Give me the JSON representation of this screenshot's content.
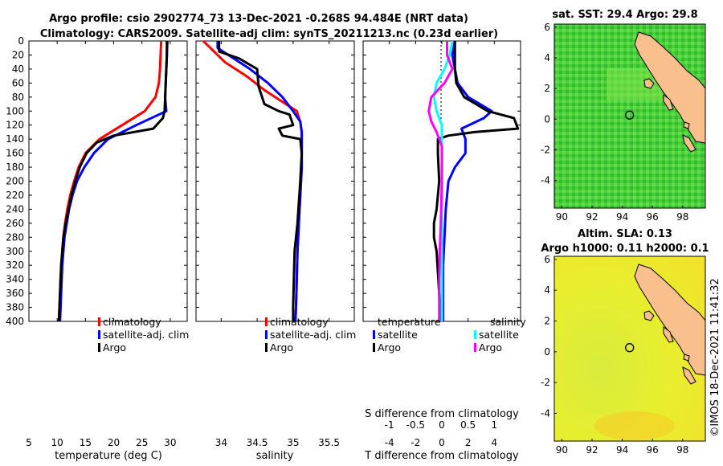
{
  "chart_data": {
    "type": "line",
    "title_line1": "Argo profile: csio 2902774_73 13-Dec-2021 -0.268S 94.484E (NRT data)",
    "title_line2": "Climatology: CARS2009. Satellite-adj clim: synTS_20211213.nc (0.23d earlier)",
    "depth_axis": {
      "ylim": [
        0,
        400
      ],
      "ticks": [
        0,
        20,
        40,
        60,
        80,
        100,
        120,
        140,
        160,
        180,
        200,
        220,
        240,
        260,
        280,
        300,
        320,
        340,
        360,
        380,
        400
      ],
      "reversed": true
    },
    "panels": [
      {
        "name": "temperature",
        "xlabel": "temperature (deg C)",
        "xlim": [
          5,
          33
        ],
        "xticks": [
          5,
          10,
          15,
          20,
          25,
          30
        ],
        "legend": [
          "climatology",
          "satellite-adj. clim",
          "Argo"
        ],
        "series": [
          {
            "name": "climatology",
            "color": "#ff0000",
            "points": [
              [
                28.4,
                0
              ],
              [
                28.3,
                20
              ],
              [
                28.2,
                40
              ],
              [
                28.0,
                60
              ],
              [
                27.4,
                80
              ],
              [
                25.5,
                100
              ],
              [
                21.5,
                120
              ],
              [
                17.5,
                140
              ],
              [
                15.0,
                160
              ],
              [
                13.8,
                180
              ],
              [
                13.0,
                200
              ],
              [
                12.3,
                220
              ],
              [
                11.8,
                240
              ],
              [
                11.4,
                260
              ],
              [
                11.1,
                280
              ],
              [
                10.9,
                300
              ],
              [
                10.8,
                320
              ],
              [
                10.6,
                340
              ],
              [
                10.5,
                360
              ],
              [
                10.4,
                380
              ],
              [
                10.3,
                400
              ]
            ]
          },
          {
            "name": "satellite-adj. clim",
            "color": "#0000ff",
            "points": [
              [
                29.5,
                0
              ],
              [
                29.4,
                20
              ],
              [
                29.3,
                40
              ],
              [
                29.2,
                60
              ],
              [
                29.1,
                80
              ],
              [
                29.3,
                100
              ],
              [
                24.0,
                120
              ],
              [
                19.0,
                140
              ],
              [
                16.5,
                160
              ],
              [
                14.8,
                180
              ],
              [
                13.5,
                200
              ],
              [
                12.7,
                220
              ],
              [
                12.1,
                240
              ],
              [
                11.7,
                260
              ],
              [
                11.3,
                280
              ],
              [
                11.1,
                300
              ],
              [
                10.9,
                320
              ],
              [
                10.8,
                340
              ],
              [
                10.7,
                360
              ],
              [
                10.6,
                380
              ],
              [
                10.5,
                400
              ]
            ]
          },
          {
            "name": "Argo",
            "color": "#000000",
            "points": [
              [
                29.4,
                0
              ],
              [
                29.4,
                20
              ],
              [
                29.3,
                40
              ],
              [
                29.2,
                60
              ],
              [
                29.1,
                80
              ],
              [
                29.0,
                100
              ],
              [
                28.7,
                110
              ],
              [
                27.0,
                125
              ],
              [
                20.0,
                135
              ],
              [
                17.0,
                145
              ],
              [
                15.2,
                160
              ],
              [
                14.0,
                180
              ],
              [
                13.2,
                200
              ],
              [
                12.5,
                220
              ],
              [
                12.0,
                240
              ],
              [
                11.5,
                260
              ],
              [
                11.1,
                280
              ],
              [
                10.9,
                300
              ],
              [
                10.7,
                320
              ],
              [
                10.6,
                340
              ],
              [
                10.5,
                360
              ],
              [
                10.4,
                380
              ],
              [
                10.3,
                400
              ]
            ]
          }
        ]
      },
      {
        "name": "salinity",
        "xlabel": "salinity",
        "xlim": [
          33.65,
          35.85
        ],
        "xticks": [
          34,
          34.5,
          35,
          35.5
        ],
        "legend": [
          "climatology",
          "satellite-adj. clim",
          "Argo"
        ],
        "series": [
          {
            "name": "climatology",
            "color": "#ff0000",
            "points": [
              [
                33.75,
                0
              ],
              [
                33.85,
                10
              ],
              [
                34.05,
                30
              ],
              [
                34.35,
                50
              ],
              [
                34.6,
                70
              ],
              [
                34.9,
                90
              ],
              [
                35.05,
                100
              ],
              [
                35.1,
                115
              ],
              [
                35.12,
                130
              ],
              [
                35.12,
                150
              ],
              [
                35.12,
                180
              ],
              [
                35.1,
                220
              ],
              [
                35.08,
                260
              ],
              [
                35.06,
                300
              ],
              [
                35.05,
                340
              ],
              [
                35.04,
                380
              ],
              [
                35.03,
                400
              ]
            ]
          },
          {
            "name": "satellite-adj. clim",
            "color": "#0000ff",
            "points": [
              [
                33.95,
                0
              ],
              [
                33.95,
                10
              ],
              [
                34.1,
                20
              ],
              [
                34.4,
                40
              ],
              [
                34.65,
                60
              ],
              [
                34.85,
                80
              ],
              [
                35.0,
                100
              ],
              [
                35.1,
                115
              ],
              [
                35.12,
                130
              ],
              [
                35.12,
                150
              ],
              [
                35.12,
                180
              ],
              [
                35.1,
                220
              ],
              [
                35.08,
                260
              ],
              [
                35.06,
                300
              ],
              [
                35.05,
                340
              ],
              [
                35.04,
                380
              ],
              [
                35.03,
                400
              ]
            ]
          },
          {
            "name": "Argo",
            "color": "#000000",
            "points": [
              [
                33.97,
                0
              ],
              [
                33.97,
                15
              ],
              [
                34.25,
                25
              ],
              [
                34.5,
                40
              ],
              [
                34.52,
                65
              ],
              [
                34.6,
                90
              ],
              [
                34.8,
                100
              ],
              [
                34.95,
                105
              ],
              [
                35.0,
                120
              ],
              [
                34.8,
                125
              ],
              [
                34.85,
                135
              ],
              [
                35.1,
                140
              ],
              [
                35.12,
                160
              ],
              [
                35.1,
                200
              ],
              [
                35.06,
                260
              ],
              [
                35.02,
                300
              ],
              [
                35.01,
                340
              ],
              [
                35.0,
                380
              ],
              [
                35.0,
                400
              ]
            ]
          }
        ]
      },
      {
        "name": "difference",
        "xlabel": "T difference from climatology",
        "top_xlabel": "S difference from climatology",
        "xlim": [
          -6,
          6
        ],
        "xticks": [
          -4,
          -2,
          0,
          2,
          4
        ],
        "top_xticks": [
          -1,
          -0.5,
          0,
          0.5,
          1
        ],
        "top_xlim": [
          -1.5,
          1.5
        ],
        "legend": {
          "temp_heading": "temperature",
          "sal_heading": "salinity",
          "temp_items": [
            "satellite",
            "Argo"
          ],
          "sal_items": [
            "satellite",
            "Argo"
          ]
        },
        "series": [
          {
            "name": "T satellite",
            "color": "#0000ff",
            "axis": "T",
            "points": [
              [
                1.0,
                0
              ],
              [
                0.8,
                20
              ],
              [
                1.0,
                40
              ],
              [
                1.2,
                60
              ],
              [
                2.0,
                80
              ],
              [
                3.8,
                100
              ],
              [
                3.2,
                110
              ],
              [
                1.5,
                125
              ],
              [
                1.8,
                140
              ],
              [
                1.8,
                160
              ],
              [
                1.0,
                180
              ],
              [
                0.5,
                200
              ],
              [
                0.3,
                240
              ],
              [
                0.2,
                280
              ],
              [
                0.1,
                320
              ],
              [
                0.1,
                360
              ],
              [
                0.1,
                400
              ]
            ]
          },
          {
            "name": "T Argo",
            "color": "#000000",
            "axis": "T",
            "points": [
              [
                1.0,
                0
              ],
              [
                1.0,
                20
              ],
              [
                1.0,
                40
              ],
              [
                1.1,
                60
              ],
              [
                1.7,
                80
              ],
              [
                3.5,
                100
              ],
              [
                5.5,
                110
              ],
              [
                5.8,
                125
              ],
              [
                2.5,
                130
              ],
              [
                0.5,
                135
              ],
              [
                -0.3,
                140
              ],
              [
                -0.3,
                160
              ],
              [
                -0.2,
                200
              ],
              [
                -0.4,
                240
              ],
              [
                -0.6,
                260
              ],
              [
                -0.6,
                280
              ],
              [
                -0.4,
                300
              ],
              [
                -0.3,
                330
              ],
              [
                -0.2,
                360
              ],
              [
                -0.1,
                400
              ]
            ]
          },
          {
            "name": "S satellite",
            "color": "#00ffff",
            "axis": "S",
            "points": [
              [
                0.2,
                0
              ],
              [
                0.15,
                20
              ],
              [
                0.05,
                40
              ],
              [
                -0.1,
                60
              ],
              [
                -0.15,
                80
              ],
              [
                -0.1,
                100
              ],
              [
                0.0,
                120
              ],
              [
                0.0,
                160
              ],
              [
                0.0,
                240
              ],
              [
                0.0,
                320
              ],
              [
                0.0,
                400
              ]
            ]
          },
          {
            "name": "S Argo",
            "color": "#ff00ff",
            "axis": "S",
            "points": [
              [
                0.1,
                0
              ],
              [
                0.1,
                20
              ],
              [
                0.2,
                40
              ],
              [
                0.05,
                60
              ],
              [
                -0.2,
                80
              ],
              [
                -0.25,
                100
              ],
              [
                -0.2,
                115
              ],
              [
                -0.1,
                130
              ],
              [
                0.0,
                150
              ],
              [
                0.0,
                200
              ],
              [
                -0.02,
                260
              ],
              [
                -0.04,
                300
              ],
              [
                -0.05,
                340
              ],
              [
                -0.05,
                380
              ],
              [
                -0.05,
                400
              ]
            ]
          }
        ]
      }
    ],
    "maps": [
      {
        "title": "sat. SST: 29.4 Argo: 29.8",
        "lat_ticks": [
          6,
          4,
          2,
          0,
          -2,
          -4
        ],
        "lon_ticks": [
          90,
          92,
          94,
          96,
          98
        ],
        "lat_range": [
          -5.8,
          6.2
        ],
        "lon_range": [
          89.5,
          99.5
        ],
        "argo_lon": 94.484,
        "argo_lat": 0.268
      },
      {
        "title_line1": "Altim. SLA: 0.13",
        "title_line2": "Argo h1000: 0.11 h2000: 0.1",
        "lat_ticks": [
          6,
          4,
          2,
          0,
          -2,
          -4
        ],
        "lon_ticks": [
          90,
          92,
          94,
          96,
          98
        ],
        "lat_range": [
          -5.8,
          6.2
        ],
        "lon_range": [
          89.5,
          99.5
        ],
        "argo_lon": 94.484,
        "argo_lat": 0.268
      }
    ],
    "footer": "©IMOS 18-Dec-2021 11:41:32"
  }
}
